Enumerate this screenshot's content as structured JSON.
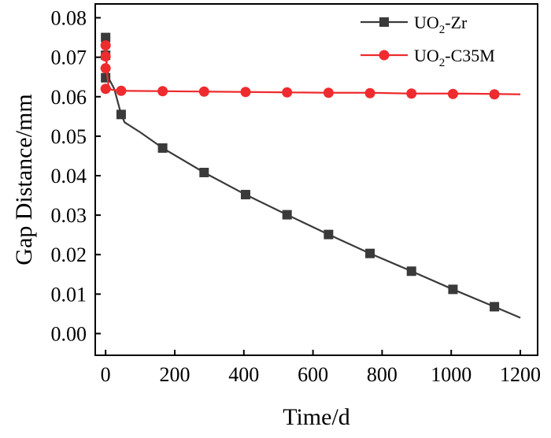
{
  "chart_data": {
    "type": "line",
    "xlabel": "Time/d",
    "ylabel": "Gap Distance/mm",
    "xlim": [
      -30,
      1250
    ],
    "ylim": [
      -0.0055,
      0.0835
    ],
    "xticks": [
      0,
      200,
      400,
      600,
      800,
      1000,
      1200
    ],
    "xtick_labels": [
      "0",
      "200",
      "400",
      "600",
      "800",
      "1000",
      "1200"
    ],
    "yticks": [
      0.0,
      0.01,
      0.02,
      0.03,
      0.04,
      0.05,
      0.06,
      0.07,
      0.08
    ],
    "ytick_labels": [
      "0.00",
      "0.01",
      "0.02",
      "0.03",
      "0.04",
      "0.05",
      "0.06",
      "0.07",
      "0.08"
    ],
    "grid": false,
    "legend_position": "top-right",
    "series": [
      {
        "name_parts": [
          "UO",
          "2",
          "-Zr"
        ],
        "color": "#3a3a3a",
        "marker": "square",
        "line": [
          [
            0,
            0.075
          ],
          [
            3,
            0.068
          ],
          [
            10,
            0.0645
          ],
          [
            25,
            0.062
          ],
          [
            45,
            0.0555
          ],
          [
            55,
            0.0535
          ],
          [
            100,
            0.051
          ],
          [
            165,
            0.047
          ],
          [
            285,
            0.0408
          ],
          [
            405,
            0.0352
          ],
          [
            525,
            0.0301
          ],
          [
            645,
            0.0251
          ],
          [
            765,
            0.0203
          ],
          [
            885,
            0.0158
          ],
          [
            1005,
            0.0112
          ],
          [
            1125,
            0.0068
          ],
          [
            1200,
            0.004
          ]
        ],
        "markers": [
          [
            0,
            0.075
          ],
          [
            0,
            0.0705
          ],
          [
            0,
            0.0648
          ],
          [
            45,
            0.0555
          ],
          [
            165,
            0.047
          ],
          [
            285,
            0.0408
          ],
          [
            405,
            0.0352
          ],
          [
            525,
            0.0301
          ],
          [
            645,
            0.0251
          ],
          [
            765,
            0.0203
          ],
          [
            885,
            0.0158
          ],
          [
            1005,
            0.0112
          ],
          [
            1125,
            0.0068
          ]
        ]
      },
      {
        "name_parts": [
          "UO",
          "2",
          "-C35M"
        ],
        "color": "#ee2b2e",
        "marker": "circle",
        "line": [
          [
            0,
            0.073
          ],
          [
            3,
            0.067
          ],
          [
            8,
            0.063
          ],
          [
            15,
            0.0618
          ],
          [
            45,
            0.0615
          ],
          [
            165,
            0.0614
          ],
          [
            285,
            0.0613
          ],
          [
            405,
            0.0612
          ],
          [
            525,
            0.0611
          ],
          [
            645,
            0.061
          ],
          [
            765,
            0.061
          ],
          [
            885,
            0.0608
          ],
          [
            1005,
            0.0608
          ],
          [
            1125,
            0.0607
          ],
          [
            1200,
            0.0606
          ]
        ],
        "markers": [
          [
            0,
            0.073
          ],
          [
            0,
            0.0702
          ],
          [
            0,
            0.0672
          ],
          [
            0,
            0.062
          ],
          [
            45,
            0.0615
          ],
          [
            165,
            0.0614
          ],
          [
            285,
            0.0613
          ],
          [
            405,
            0.0612
          ],
          [
            525,
            0.0611
          ],
          [
            645,
            0.061
          ],
          [
            765,
            0.0609
          ],
          [
            885,
            0.0608
          ],
          [
            1005,
            0.0607
          ],
          [
            1125,
            0.0606
          ]
        ]
      }
    ]
  }
}
